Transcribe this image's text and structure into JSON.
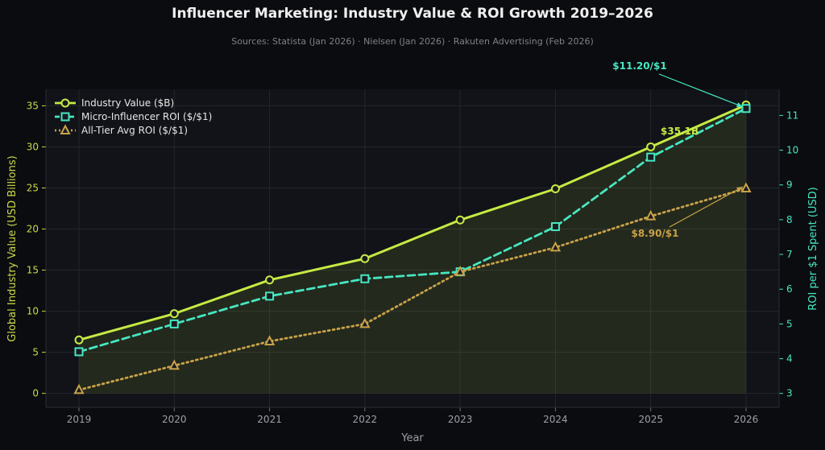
{
  "colors": {
    "background": "#0b0c10",
    "plot_bg": "#111318",
    "industry": "#c6ea44",
    "micro": "#47e6c1",
    "alltier": "#c9a24a",
    "grid": "#23262c"
  },
  "chart_data": {
    "type": "line",
    "title": "Influencer Marketing: Industry Value & ROI Growth 2019–2026",
    "subtitle": "Sources: Statista (Jan 2026) · Nielsen (Jan 2026) · Rakuten Advertising (Feb 2026)",
    "xlabel": "Year",
    "ylabel_left": "Global Industry Value (USD Billions)",
    "ylabel_right": "ROI per $1 Spent (USD)",
    "x": [
      "2019",
      "2020",
      "2021",
      "2022",
      "2023",
      "2024",
      "2025",
      "2026"
    ],
    "ylim_left": [
      -1.7,
      37
    ],
    "ylim_right": [
      2.6,
      11.75
    ],
    "yticks_left": [
      "0",
      "5",
      "10",
      "15",
      "20",
      "25",
      "30",
      "35"
    ],
    "yticks_right": [
      "3",
      "4",
      "5",
      "6",
      "7",
      "8",
      "9",
      "10",
      "11"
    ],
    "grid": true,
    "legend_position": "top-left",
    "series": [
      {
        "name": "Industry Value ($B)",
        "axis": "left",
        "style": "solid",
        "marker": "circle",
        "values": [
          6.5,
          9.7,
          13.8,
          16.4,
          21.1,
          24.9,
          30.0,
          35.1
        ]
      },
      {
        "name": "Micro-Influencer ROI ($/$1)",
        "axis": "right",
        "style": "dashed",
        "marker": "square",
        "values": [
          4.2,
          5.0,
          5.8,
          6.3,
          6.5,
          7.8,
          9.8,
          11.2
        ]
      },
      {
        "name": "All-Tier Avg ROI ($/$1)",
        "axis": "right",
        "style": "dotted",
        "marker": "triangle",
        "values": [
          3.1,
          3.8,
          4.5,
          5.0,
          6.5,
          7.2,
          8.1,
          8.9
        ]
      }
    ],
    "annotations": [
      {
        "text": "$11.20/$1",
        "series": 1,
        "index": 7
      },
      {
        "text": "$35.1B",
        "series": 0,
        "index": 7
      },
      {
        "text": "$8.90/$1",
        "series": 2,
        "index": 7
      }
    ]
  }
}
